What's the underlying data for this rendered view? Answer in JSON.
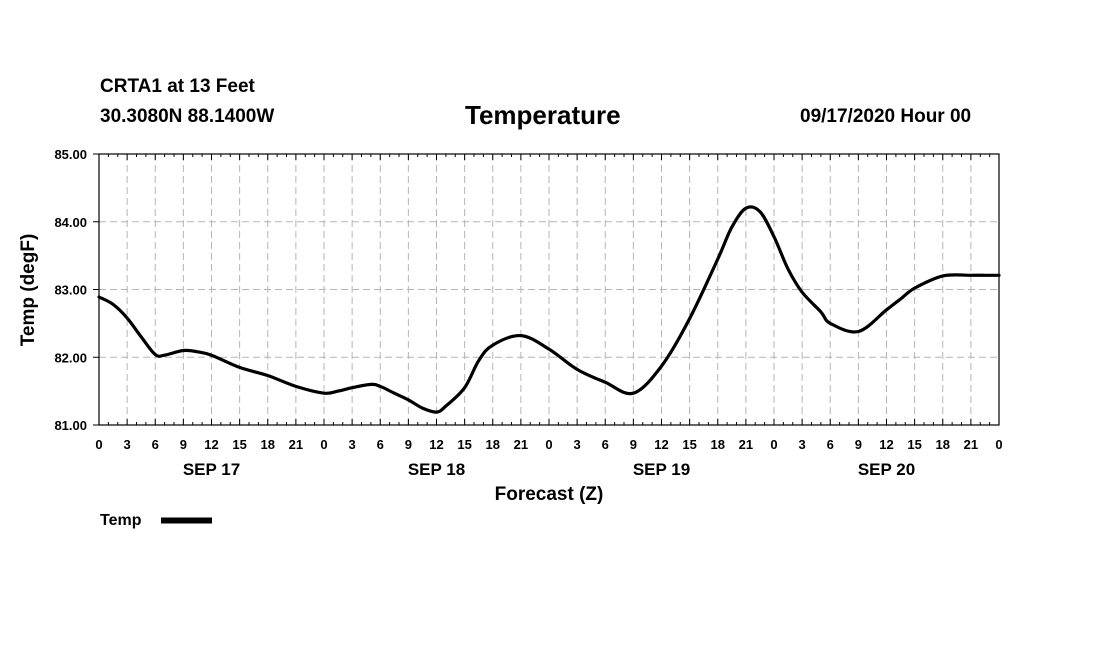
{
  "header": {
    "station": "CRTA1 at 13 Feet",
    "coords": "30.3080N 88.1400W",
    "title": "Temperature",
    "timestamp": "09/17/2020 Hour 00"
  },
  "chart_data": {
    "type": "line",
    "title": "Temperature",
    "xlabel": "Forecast (Z)",
    "ylabel": "Temp (degF)",
    "xlim": [
      0,
      96
    ],
    "ylim": [
      81,
      85
    ],
    "grid": true,
    "yticks": [
      81,
      82,
      83,
      84,
      85
    ],
    "ytick_labels": [
      "81.00",
      "82.00",
      "83.00",
      "84.00",
      "85.00"
    ],
    "xtick_hours": [
      0,
      3,
      6,
      9,
      12,
      15,
      18,
      21,
      24,
      27,
      30,
      33,
      36,
      39,
      42,
      45,
      48,
      51,
      54,
      57,
      60,
      63,
      66,
      69,
      72,
      75,
      78,
      81,
      84,
      87,
      90,
      93,
      96
    ],
    "xtick_labels": [
      "0",
      "3",
      "6",
      "9",
      "12",
      "15",
      "18",
      "21",
      "0",
      "3",
      "6",
      "9",
      "12",
      "15",
      "18",
      "21",
      "0",
      "3",
      "6",
      "9",
      "12",
      "15",
      "18",
      "21",
      "0",
      "3",
      "6",
      "9",
      "12",
      "15",
      "18",
      "21",
      "0"
    ],
    "day_labels": [
      {
        "label": "SEP 17",
        "hour": 12
      },
      {
        "label": "SEP 18",
        "hour": 36
      },
      {
        "label": "SEP 19",
        "hour": 60
      },
      {
        "label": "SEP 20",
        "hour": 84
      }
    ],
    "series": [
      {
        "name": "Temp",
        "color": "#000000",
        "x": [
          0,
          1.5,
          3,
          4.5,
          6,
          7,
          9,
          10.5,
          12,
          15,
          18,
          21,
          24,
          25.5,
          27,
          29,
          30,
          31.5,
          33,
          34.5,
          36,
          37,
          39,
          40.5,
          42,
          45,
          48,
          51,
          54,
          57,
          60,
          63,
          66,
          67.5,
          69,
          70.5,
          72,
          73.5,
          75,
          77,
          78,
          81,
          84,
          85.5,
          87,
          90,
          93,
          94.5,
          96
        ],
        "y": [
          82.89,
          82.78,
          82.58,
          82.3,
          82.04,
          82.03,
          82.1,
          82.08,
          82.03,
          81.85,
          81.73,
          81.57,
          81.47,
          81.5,
          81.55,
          81.6,
          81.57,
          81.47,
          81.37,
          81.25,
          81.19,
          81.28,
          81.55,
          81.95,
          82.18,
          82.32,
          82.12,
          81.82,
          81.63,
          81.47,
          81.87,
          82.57,
          83.45,
          83.92,
          84.2,
          84.15,
          83.78,
          83.3,
          82.96,
          82.67,
          82.5,
          82.38,
          82.7,
          82.86,
          83.02,
          83.2,
          83.21,
          83.21,
          83.21
        ]
      }
    ],
    "legend": {
      "position": "bottom-left",
      "label": "Temp"
    }
  }
}
